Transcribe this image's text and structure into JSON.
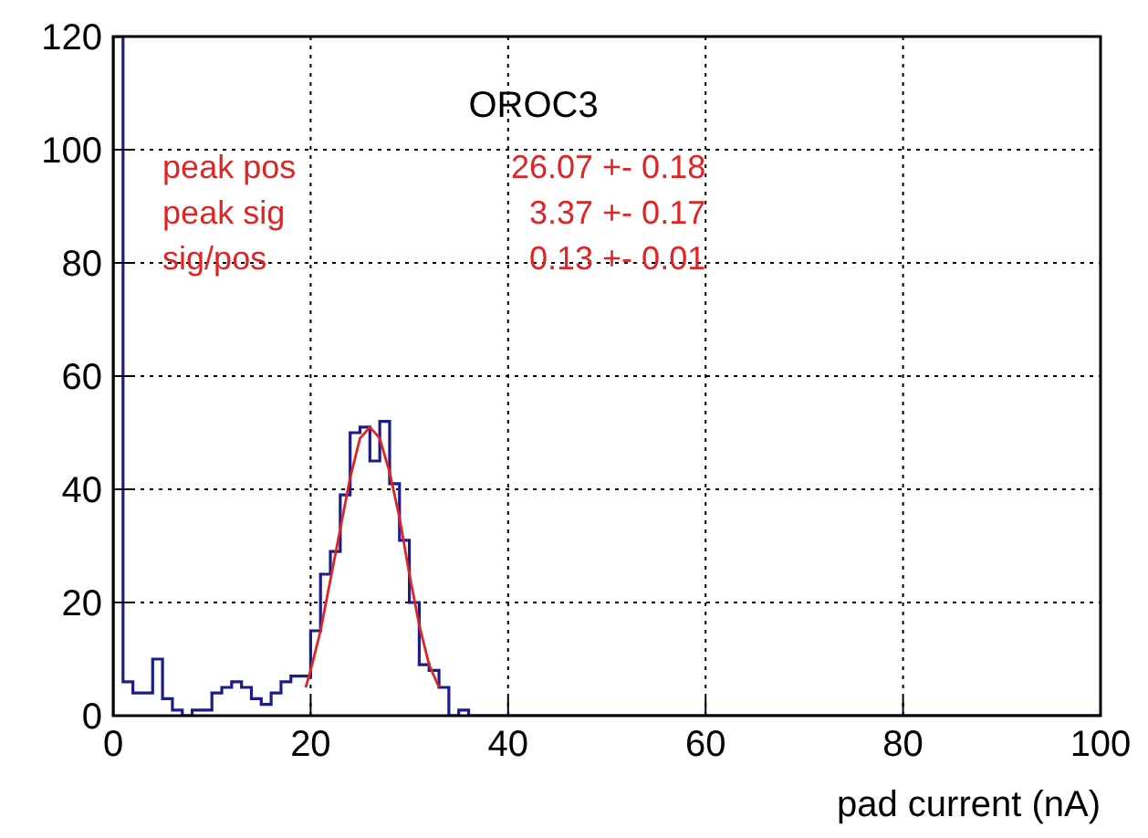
{
  "chart_data": {
    "type": "histogram",
    "title": "OROC3",
    "xlabel": "pad current (nA)",
    "bins": [
      0,
      1,
      2,
      3,
      4,
      5,
      6,
      7,
      8,
      9,
      10,
      11,
      12,
      13,
      14,
      15,
      16,
      17,
      18,
      19,
      20,
      21,
      22,
      23,
      24,
      25,
      26,
      27,
      28,
      29,
      30,
      31,
      32,
      33,
      34,
      35,
      36,
      37,
      38,
      39,
      40,
      41,
      42,
      43,
      44,
      45,
      46,
      47,
      48,
      49,
      50,
      51,
      52,
      53,
      54,
      55,
      56,
      57,
      58,
      59,
      60,
      61,
      62,
      63,
      64,
      65,
      66,
      67,
      68,
      69,
      70,
      71,
      72,
      73,
      74,
      75,
      76,
      77,
      78,
      79,
      80,
      81,
      82,
      83,
      84,
      85,
      86,
      87,
      88,
      89,
      90,
      91,
      92,
      93,
      94,
      95,
      96,
      97,
      98,
      99,
      100
    ],
    "values": [
      120,
      6,
      4,
      4,
      10,
      3,
      1,
      0,
      1,
      1,
      4,
      5,
      6,
      5,
      3,
      2,
      4,
      6,
      7,
      7,
      15,
      25,
      29,
      39,
      50,
      51,
      45,
      52,
      41,
      31,
      20,
      9,
      8,
      5,
      0,
      1,
      0,
      0,
      0,
      0,
      0,
      0,
      0,
      0,
      0,
      0,
      0,
      0,
      0,
      0,
      0,
      0,
      0,
      0,
      0,
      0,
      0,
      0,
      0,
      0,
      0,
      0,
      0,
      0,
      0,
      0,
      0,
      0,
      0,
      0,
      0,
      0,
      0,
      0,
      0,
      0,
      0,
      0,
      0,
      0,
      0,
      0,
      0,
      0,
      0,
      0,
      0,
      0,
      0,
      0,
      0,
      0,
      0,
      0,
      0,
      0,
      0,
      0,
      0,
      0
    ],
    "color": "#1c1c8a",
    "series": [
      {
        "type": "line",
        "color": "#e02424",
        "x": [
          19.5,
          20,
          21,
          22,
          23,
          24,
          25,
          26,
          27,
          28,
          29,
          30,
          31,
          32,
          33
        ],
        "values": [
          5,
          8,
          15,
          24,
          33,
          42,
          49,
          51,
          49,
          43,
          35,
          25,
          16,
          9,
          5
        ]
      }
    ],
    "annotations": [
      "peak pos",
      "26.07 +- 0.18",
      "peak sig",
      "3.37 +- 0.17",
      "sig/pos",
      "0.13 +- 0.01"
    ],
    "xlim": [
      0,
      100
    ],
    "ylim": [
      0,
      120
    ],
    "xticks": [
      0,
      20,
      40,
      60,
      80,
      100
    ],
    "yticks": [
      0,
      20,
      40,
      60,
      80,
      100,
      120
    ],
    "grid": true
  }
}
